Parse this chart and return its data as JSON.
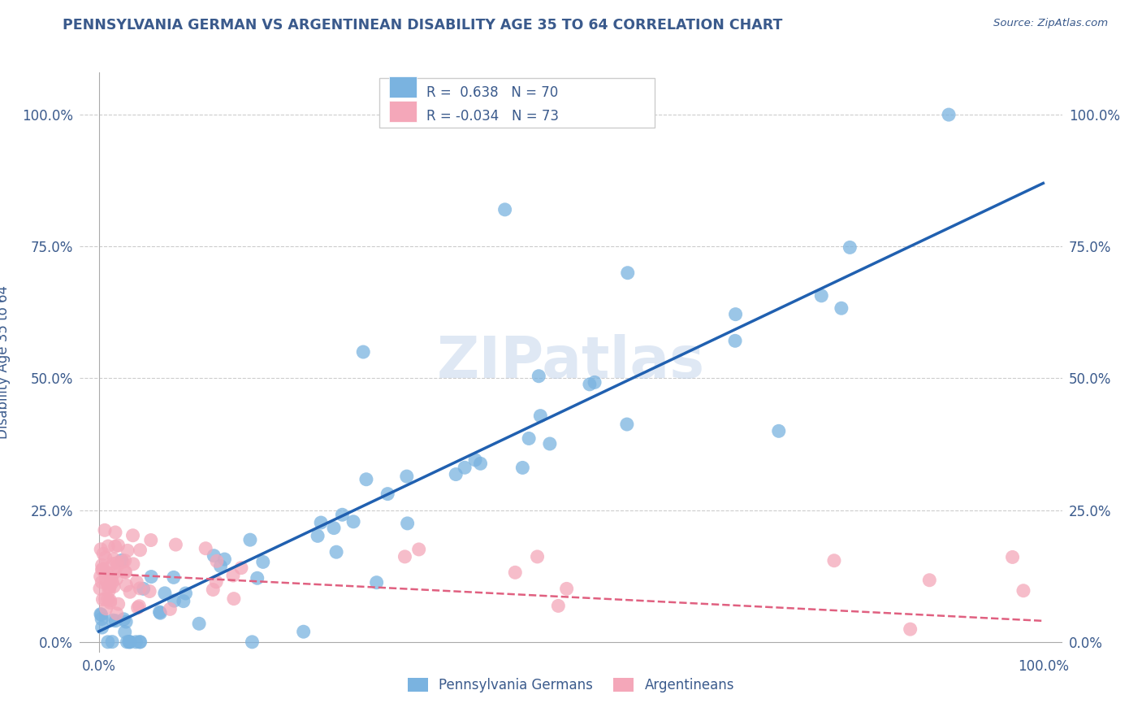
{
  "title": "PENNSYLVANIA GERMAN VS ARGENTINEAN DISABILITY AGE 35 TO 64 CORRELATION CHART",
  "source": "Source: ZipAtlas.com",
  "ylabel": "Disability Age 35 to 64",
  "yticklabels": [
    "0.0%",
    "25.0%",
    "50.0%",
    "75.0%",
    "100.0%"
  ],
  "ytick_positions": [
    0.0,
    0.25,
    0.5,
    0.75,
    1.0
  ],
  "watermark": "ZIPatlas",
  "legend_blue_label": "Pennsylvania Germans",
  "legend_pink_label": "Argentineans",
  "R_blue": 0.638,
  "N_blue": 70,
  "R_pink": -0.034,
  "N_pink": 73,
  "blue_color": "#7ab3e0",
  "pink_color": "#f4a7b9",
  "blue_line_color": "#2060b0",
  "pink_line_color": "#e06080",
  "title_color": "#3a5a8c",
  "axis_label_color": "#3a5a8c",
  "tick_color": "#3a5a8c",
  "source_color": "#3a5a8c",
  "grid_color": "#cccccc",
  "background_color": "#ffffff"
}
